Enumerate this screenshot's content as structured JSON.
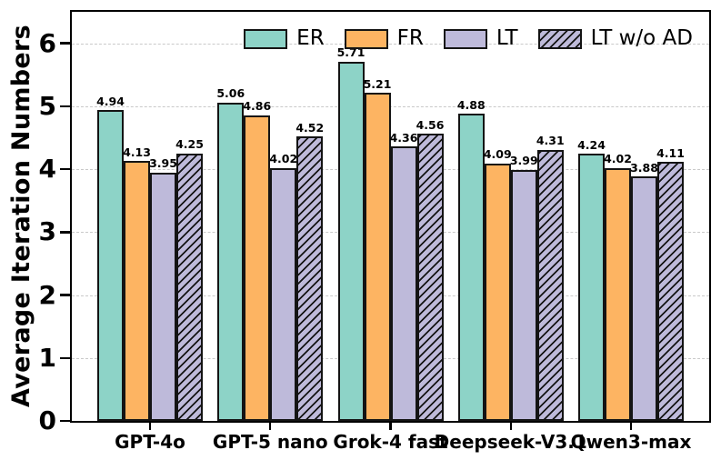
{
  "chart_data": {
    "type": "bar",
    "title": "",
    "xlabel": "",
    "ylabel": "Average Iteration Numbers",
    "ylim": [
      0,
      6.5
    ],
    "yticks": [
      0,
      1,
      2,
      3,
      4,
      5,
      6
    ],
    "grid": {
      "axis": "y",
      "style": "dashed",
      "color": "#c9c9c9"
    },
    "legend": {
      "position": "upper-right-inside",
      "frame": false
    },
    "value_labels": true,
    "value_label_decimals": 2,
    "bar_edge_color": "#141414",
    "categories": [
      "GPT-4o",
      "GPT-5 nano",
      "Grok-4 fast",
      "Deepseek-V3.1",
      "Qwen3-max"
    ],
    "series": [
      {
        "name": "ER",
        "color": "#8dd3c7",
        "hatch": "none",
        "values": [
          4.94,
          5.06,
          5.71,
          4.88,
          4.24
        ]
      },
      {
        "name": "FR",
        "color": "#fdb462",
        "hatch": "none",
        "values": [
          4.13,
          4.86,
          5.21,
          4.09,
          4.02
        ]
      },
      {
        "name": "LT",
        "color": "#bebada",
        "hatch": "none",
        "values": [
          3.95,
          4.02,
          4.36,
          3.99,
          3.88
        ]
      },
      {
        "name": "LT w/o AD",
        "color": "#bebada",
        "hatch": "diagonal",
        "values": [
          4.25,
          4.52,
          4.56,
          4.31,
          4.11
        ]
      }
    ]
  }
}
